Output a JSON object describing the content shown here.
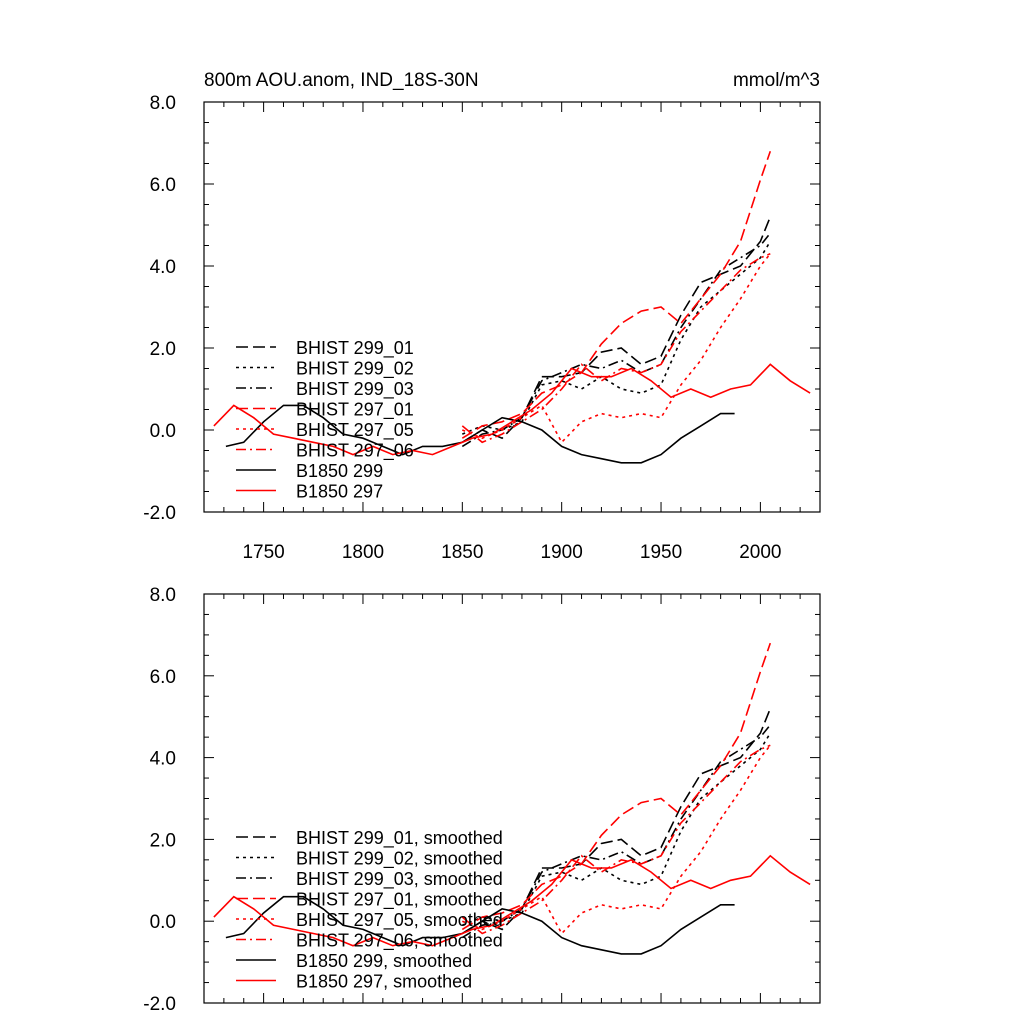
{
  "header": {
    "title": "800m AOU.anom, IND_18S-30N",
    "units": "mmol/m^3"
  },
  "chart_data": [
    {
      "type": "line",
      "title": "800m AOU.anom, IND_18S-30N",
      "units_label": "mmol/m^3",
      "xlim": [
        1720,
        2030
      ],
      "ylim": [
        -2.0,
        8.0
      ],
      "x_ticks": [
        1750,
        1800,
        1850,
        1900,
        1950,
        2000
      ],
      "x_tick_labels": [
        "1750",
        "1800",
        "1850",
        "1900",
        "1950",
        "2000"
      ],
      "y_ticks": [
        -2,
        0,
        2,
        4,
        6,
        8
      ],
      "y_tick_labels": [
        "-2.0",
        "0.0",
        "2.0",
        "4.0",
        "6.0",
        "8.0"
      ],
      "legend_position": "left-middle",
      "series": [
        {
          "name": "BHIST 299_01",
          "color": "#000000",
          "dash": "dashed",
          "x": [
            1850,
            1860,
            1870,
            1880,
            1890,
            1900,
            1910,
            1920,
            1930,
            1940,
            1950,
            1960,
            1970,
            1980,
            1990,
            2000,
            2005
          ],
          "y": [
            -0.3,
            0.0,
            -0.2,
            0.3,
            1.3,
            1.3,
            1.4,
            1.9,
            2.0,
            1.6,
            1.8,
            2.8,
            3.6,
            3.8,
            4.0,
            4.6,
            5.2
          ]
        },
        {
          "name": "BHIST 299_02",
          "color": "#000000",
          "dash": "dotted",
          "x": [
            1850,
            1860,
            1870,
            1880,
            1890,
            1900,
            1910,
            1920,
            1930,
            1940,
            1950,
            1960,
            1970,
            1980,
            1990,
            2000,
            2005
          ],
          "y": [
            -0.1,
            0.1,
            0.0,
            0.2,
            1.1,
            1.2,
            1.0,
            1.3,
            1.0,
            0.9,
            1.1,
            2.2,
            3.0,
            3.4,
            3.8,
            4.2,
            4.6
          ]
        },
        {
          "name": "BHIST 299_03",
          "color": "#000000",
          "dash": "dashdot",
          "x": [
            1850,
            1860,
            1870,
            1880,
            1890,
            1900,
            1910,
            1920,
            1930,
            1940,
            1950,
            1960,
            1970,
            1980,
            1990,
            2000,
            2005
          ],
          "y": [
            -0.4,
            -0.1,
            0.0,
            0.3,
            1.2,
            1.4,
            1.6,
            1.5,
            1.7,
            1.4,
            1.6,
            2.5,
            3.2,
            3.9,
            4.2,
            4.5,
            4.8
          ]
        },
        {
          "name": "BHIST 297_01",
          "color": "#ff0000",
          "dash": "dashed",
          "x": [
            1850,
            1860,
            1870,
            1880,
            1890,
            1900,
            1910,
            1920,
            1930,
            1940,
            1950,
            1960,
            1970,
            1980,
            1990,
            2000,
            2005
          ],
          "y": [
            -0.2,
            0.1,
            0.2,
            0.4,
            0.9,
            1.1,
            1.4,
            2.1,
            2.6,
            2.9,
            3.0,
            2.6,
            3.2,
            3.8,
            4.6,
            6.1,
            6.8
          ]
        },
        {
          "name": "BHIST 297_05",
          "color": "#ff0000",
          "dash": "dotted",
          "x": [
            1850,
            1860,
            1870,
            1880,
            1890,
            1900,
            1910,
            1920,
            1930,
            1940,
            1950,
            1960,
            1970,
            1980,
            1990,
            2000,
            2005
          ],
          "y": [
            0.0,
            -0.2,
            0.0,
            0.3,
            0.6,
            -0.3,
            0.2,
            0.4,
            0.3,
            0.4,
            0.3,
            1.1,
            1.7,
            2.5,
            3.2,
            4.0,
            4.3
          ]
        },
        {
          "name": "BHIST 297_06",
          "color": "#ff0000",
          "dash": "dashdot",
          "x": [
            1850,
            1860,
            1870,
            1880,
            1890,
            1900,
            1910,
            1920,
            1930,
            1940,
            1950,
            1960,
            1970,
            1980,
            1990,
            2000,
            2005
          ],
          "y": [
            0.1,
            -0.3,
            -0.1,
            0.2,
            0.5,
            1.0,
            1.6,
            1.2,
            1.5,
            1.4,
            1.6,
            2.4,
            2.9,
            3.4,
            3.9,
            4.2,
            4.3
          ]
        },
        {
          "name": "B1850 299",
          "color": "#000000",
          "dash": "solid",
          "x": [
            1731,
            1740,
            1750,
            1760,
            1770,
            1780,
            1790,
            1800,
            1810,
            1820,
            1830,
            1840,
            1850,
            1860,
            1870,
            1880,
            1890,
            1900,
            1910,
            1920,
            1930,
            1940,
            1950,
            1960,
            1970,
            1980,
            1987
          ],
          "y": [
            -0.4,
            -0.3,
            0.2,
            0.6,
            0.6,
            0.3,
            -0.1,
            -0.2,
            -0.4,
            -0.6,
            -0.4,
            -0.4,
            -0.3,
            0.0,
            0.3,
            0.2,
            0.0,
            -0.4,
            -0.6,
            -0.7,
            -0.8,
            -0.8,
            -0.6,
            -0.2,
            0.1,
            0.4,
            0.4
          ]
        },
        {
          "name": "B1850 297",
          "color": "#ff0000",
          "dash": "solid",
          "x": [
            1725,
            1735,
            1745,
            1755,
            1765,
            1775,
            1785,
            1795,
            1805,
            1815,
            1825,
            1835,
            1845,
            1855,
            1865,
            1875,
            1885,
            1895,
            1905,
            1915,
            1925,
            1935,
            1945,
            1955,
            1965,
            1975,
            1985,
            1995,
            2005,
            2015,
            2025
          ],
          "y": [
            0.1,
            0.6,
            0.3,
            -0.1,
            -0.2,
            -0.3,
            -0.4,
            -0.6,
            -0.4,
            -0.6,
            -0.5,
            -0.6,
            -0.4,
            -0.2,
            -0.1,
            0.2,
            0.5,
            0.9,
            1.5,
            1.3,
            1.3,
            1.5,
            1.2,
            0.8,
            1.0,
            0.8,
            1.0,
            1.1,
            1.6,
            1.2,
            0.9
          ]
        }
      ]
    },
    {
      "type": "line",
      "xlim": [
        1720,
        2030
      ],
      "ylim": [
        -2.0,
        8.0
      ],
      "x_ticks": [
        1750,
        1800,
        1850,
        1900,
        1950,
        2000
      ],
      "y_ticks": [
        -2,
        0,
        2,
        4,
        6,
        8
      ],
      "y_tick_labels": [
        "-2.0",
        "0.0",
        "2.0",
        "4.0",
        "6.0",
        "8.0"
      ],
      "legend_position": "left-bottom",
      "series": [
        {
          "name": "BHIST 299_01, smoothed",
          "color": "#000000",
          "dash": "dashed",
          "x": [
            1850,
            1860,
            1870,
            1880,
            1890,
            1900,
            1910,
            1920,
            1930,
            1940,
            1950,
            1960,
            1970,
            1980,
            1990,
            2000,
            2005
          ],
          "y": [
            -0.3,
            0.0,
            -0.2,
            0.3,
            1.3,
            1.3,
            1.4,
            1.9,
            2.0,
            1.6,
            1.8,
            2.8,
            3.6,
            3.8,
            4.0,
            4.6,
            5.2
          ]
        },
        {
          "name": "BHIST 299_02, smoothed",
          "color": "#000000",
          "dash": "dotted",
          "x": [
            1850,
            1860,
            1870,
            1880,
            1890,
            1900,
            1910,
            1920,
            1930,
            1940,
            1950,
            1960,
            1970,
            1980,
            1990,
            2000,
            2005
          ],
          "y": [
            -0.1,
            0.1,
            0.0,
            0.2,
            1.1,
            1.2,
            1.0,
            1.3,
            1.0,
            0.9,
            1.1,
            2.2,
            3.0,
            3.4,
            3.8,
            4.2,
            4.6
          ]
        },
        {
          "name": "BHIST 299_03, smoothed",
          "color": "#000000",
          "dash": "dashdot",
          "x": [
            1850,
            1860,
            1870,
            1880,
            1890,
            1900,
            1910,
            1920,
            1930,
            1940,
            1950,
            1960,
            1970,
            1980,
            1990,
            2000,
            2005
          ],
          "y": [
            -0.4,
            -0.1,
            0.0,
            0.3,
            1.2,
            1.4,
            1.6,
            1.5,
            1.7,
            1.4,
            1.6,
            2.5,
            3.2,
            3.9,
            4.2,
            4.5,
            4.8
          ]
        },
        {
          "name": "BHIST 297_01, smoothed",
          "color": "#ff0000",
          "dash": "dashed",
          "x": [
            1850,
            1860,
            1870,
            1880,
            1890,
            1900,
            1910,
            1920,
            1930,
            1940,
            1950,
            1960,
            1970,
            1980,
            1990,
            2000,
            2005
          ],
          "y": [
            -0.2,
            0.1,
            0.2,
            0.4,
            0.9,
            1.1,
            1.4,
            2.1,
            2.6,
            2.9,
            3.0,
            2.6,
            3.2,
            3.8,
            4.6,
            6.1,
            6.8
          ]
        },
        {
          "name": "BHIST 297_05, smoothed",
          "color": "#ff0000",
          "dash": "dotted",
          "x": [
            1850,
            1860,
            1870,
            1880,
            1890,
            1900,
            1910,
            1920,
            1930,
            1940,
            1950,
            1960,
            1970,
            1980,
            1990,
            2000,
            2005
          ],
          "y": [
            0.0,
            -0.2,
            0.0,
            0.3,
            0.6,
            -0.3,
            0.2,
            0.4,
            0.3,
            0.4,
            0.3,
            1.1,
            1.7,
            2.5,
            3.2,
            4.0,
            4.3
          ]
        },
        {
          "name": "BHIST 297_06, smoothed",
          "color": "#ff0000",
          "dash": "dashdot",
          "x": [
            1850,
            1860,
            1870,
            1880,
            1890,
            1900,
            1910,
            1920,
            1930,
            1940,
            1950,
            1960,
            1970,
            1980,
            1990,
            2000,
            2005
          ],
          "y": [
            0.1,
            -0.3,
            -0.1,
            0.2,
            0.5,
            1.0,
            1.6,
            1.2,
            1.5,
            1.4,
            1.6,
            2.4,
            2.9,
            3.4,
            3.9,
            4.2,
            4.3
          ]
        },
        {
          "name": "B1850 299, smoothed",
          "color": "#000000",
          "dash": "solid",
          "x": [
            1731,
            1740,
            1750,
            1760,
            1770,
            1780,
            1790,
            1800,
            1810,
            1820,
            1830,
            1840,
            1850,
            1860,
            1870,
            1880,
            1890,
            1900,
            1910,
            1920,
            1930,
            1940,
            1950,
            1960,
            1970,
            1980,
            1987
          ],
          "y": [
            -0.4,
            -0.3,
            0.2,
            0.6,
            0.6,
            0.3,
            -0.1,
            -0.2,
            -0.4,
            -0.6,
            -0.4,
            -0.4,
            -0.3,
            0.0,
            0.3,
            0.2,
            0.0,
            -0.4,
            -0.6,
            -0.7,
            -0.8,
            -0.8,
            -0.6,
            -0.2,
            0.1,
            0.4,
            0.4
          ]
        },
        {
          "name": "B1850 297, smoothed",
          "color": "#ff0000",
          "dash": "solid",
          "x": [
            1725,
            1735,
            1745,
            1755,
            1765,
            1775,
            1785,
            1795,
            1805,
            1815,
            1825,
            1835,
            1845,
            1855,
            1865,
            1875,
            1885,
            1895,
            1905,
            1915,
            1925,
            1935,
            1945,
            1955,
            1965,
            1975,
            1985,
            1995,
            2005,
            2015,
            2025
          ],
          "y": [
            0.1,
            0.6,
            0.3,
            -0.1,
            -0.2,
            -0.3,
            -0.4,
            -0.6,
            -0.4,
            -0.6,
            -0.5,
            -0.6,
            -0.4,
            -0.2,
            -0.1,
            0.2,
            0.5,
            0.9,
            1.5,
            1.3,
            1.3,
            1.5,
            1.2,
            0.8,
            1.0,
            0.8,
            1.0,
            1.1,
            1.6,
            1.2,
            0.9
          ]
        }
      ]
    }
  ]
}
